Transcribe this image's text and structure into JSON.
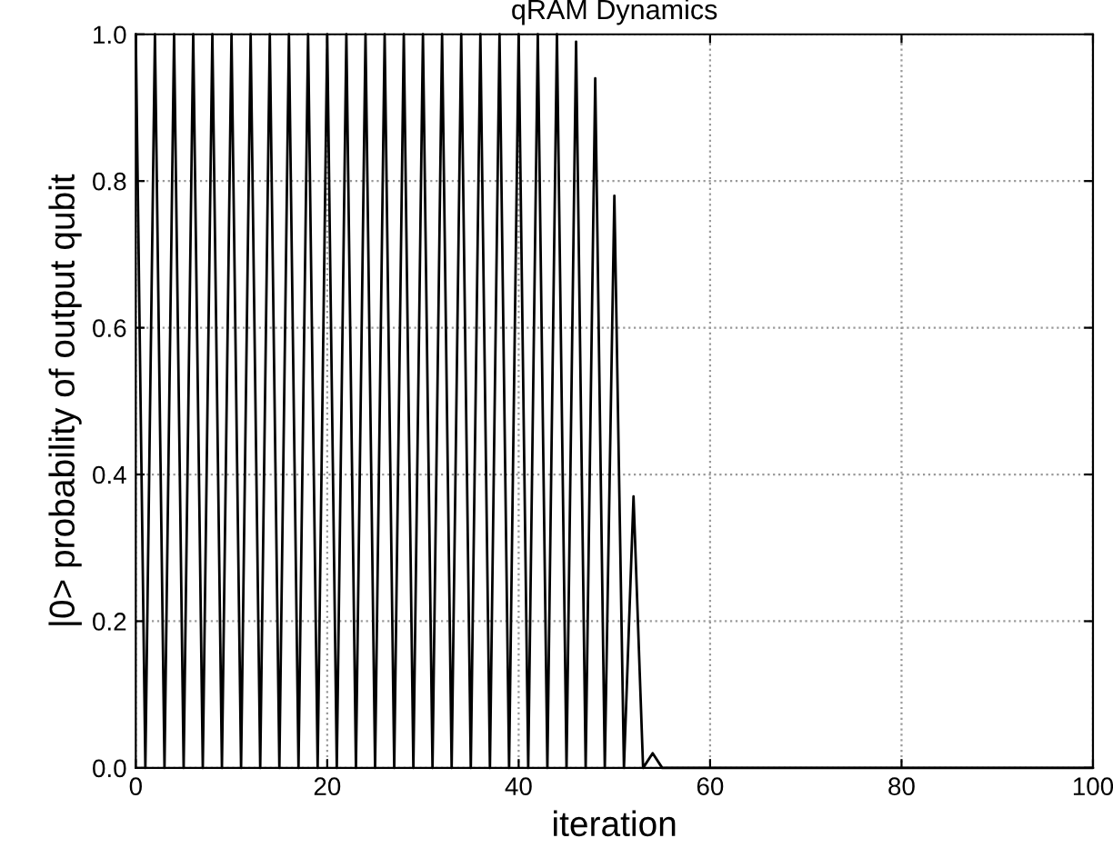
{
  "chart_data": {
    "type": "line",
    "title": "qRAM Dynamics",
    "xlabel": "iteration",
    "ylabel": "|0> probability of output qubit",
    "x": [
      0,
      1,
      2,
      3,
      4,
      5,
      6,
      7,
      8,
      9,
      10,
      11,
      12,
      13,
      14,
      15,
      16,
      17,
      18,
      19,
      20,
      21,
      22,
      23,
      24,
      25,
      26,
      27,
      28,
      29,
      30,
      31,
      32,
      33,
      34,
      35,
      36,
      37,
      38,
      39,
      40,
      41,
      42,
      43,
      44,
      45,
      46,
      47,
      48,
      49,
      50,
      51,
      52,
      53,
      54,
      55,
      100
    ],
    "series": [
      {
        "color": "#000000",
        "values": [
          1,
          0,
          1,
          0,
          1,
          0,
          1,
          0,
          1,
          0,
          1,
          0,
          1,
          0,
          1,
          0,
          1,
          0,
          1,
          0,
          1,
          0,
          1,
          0,
          1,
          0,
          1,
          0,
          1,
          0,
          1,
          0,
          1,
          0,
          1,
          0,
          1,
          0,
          1,
          0,
          1,
          0,
          1,
          0,
          1,
          0,
          0.99,
          0,
          0.94,
          0,
          0.78,
          0,
          0.37,
          0,
          0.02,
          0,
          0
        ]
      }
    ],
    "xlim": [
      0,
      100
    ],
    "ylim": [
      0,
      1
    ],
    "xticks": [
      0,
      20,
      40,
      60,
      80,
      100
    ],
    "yticks": [
      {
        "value": 0,
        "label": "0.0"
      },
      {
        "value": 0.2,
        "label": "0.2"
      },
      {
        "value": 0.4,
        "label": "0.4"
      },
      {
        "value": 0.6,
        "label": "0.6"
      },
      {
        "value": 0.8,
        "label": "0.8"
      },
      {
        "value": 1,
        "label": "1.0"
      }
    ],
    "grid": true,
    "marker": "none",
    "line_style": "solid",
    "legend": false
  }
}
